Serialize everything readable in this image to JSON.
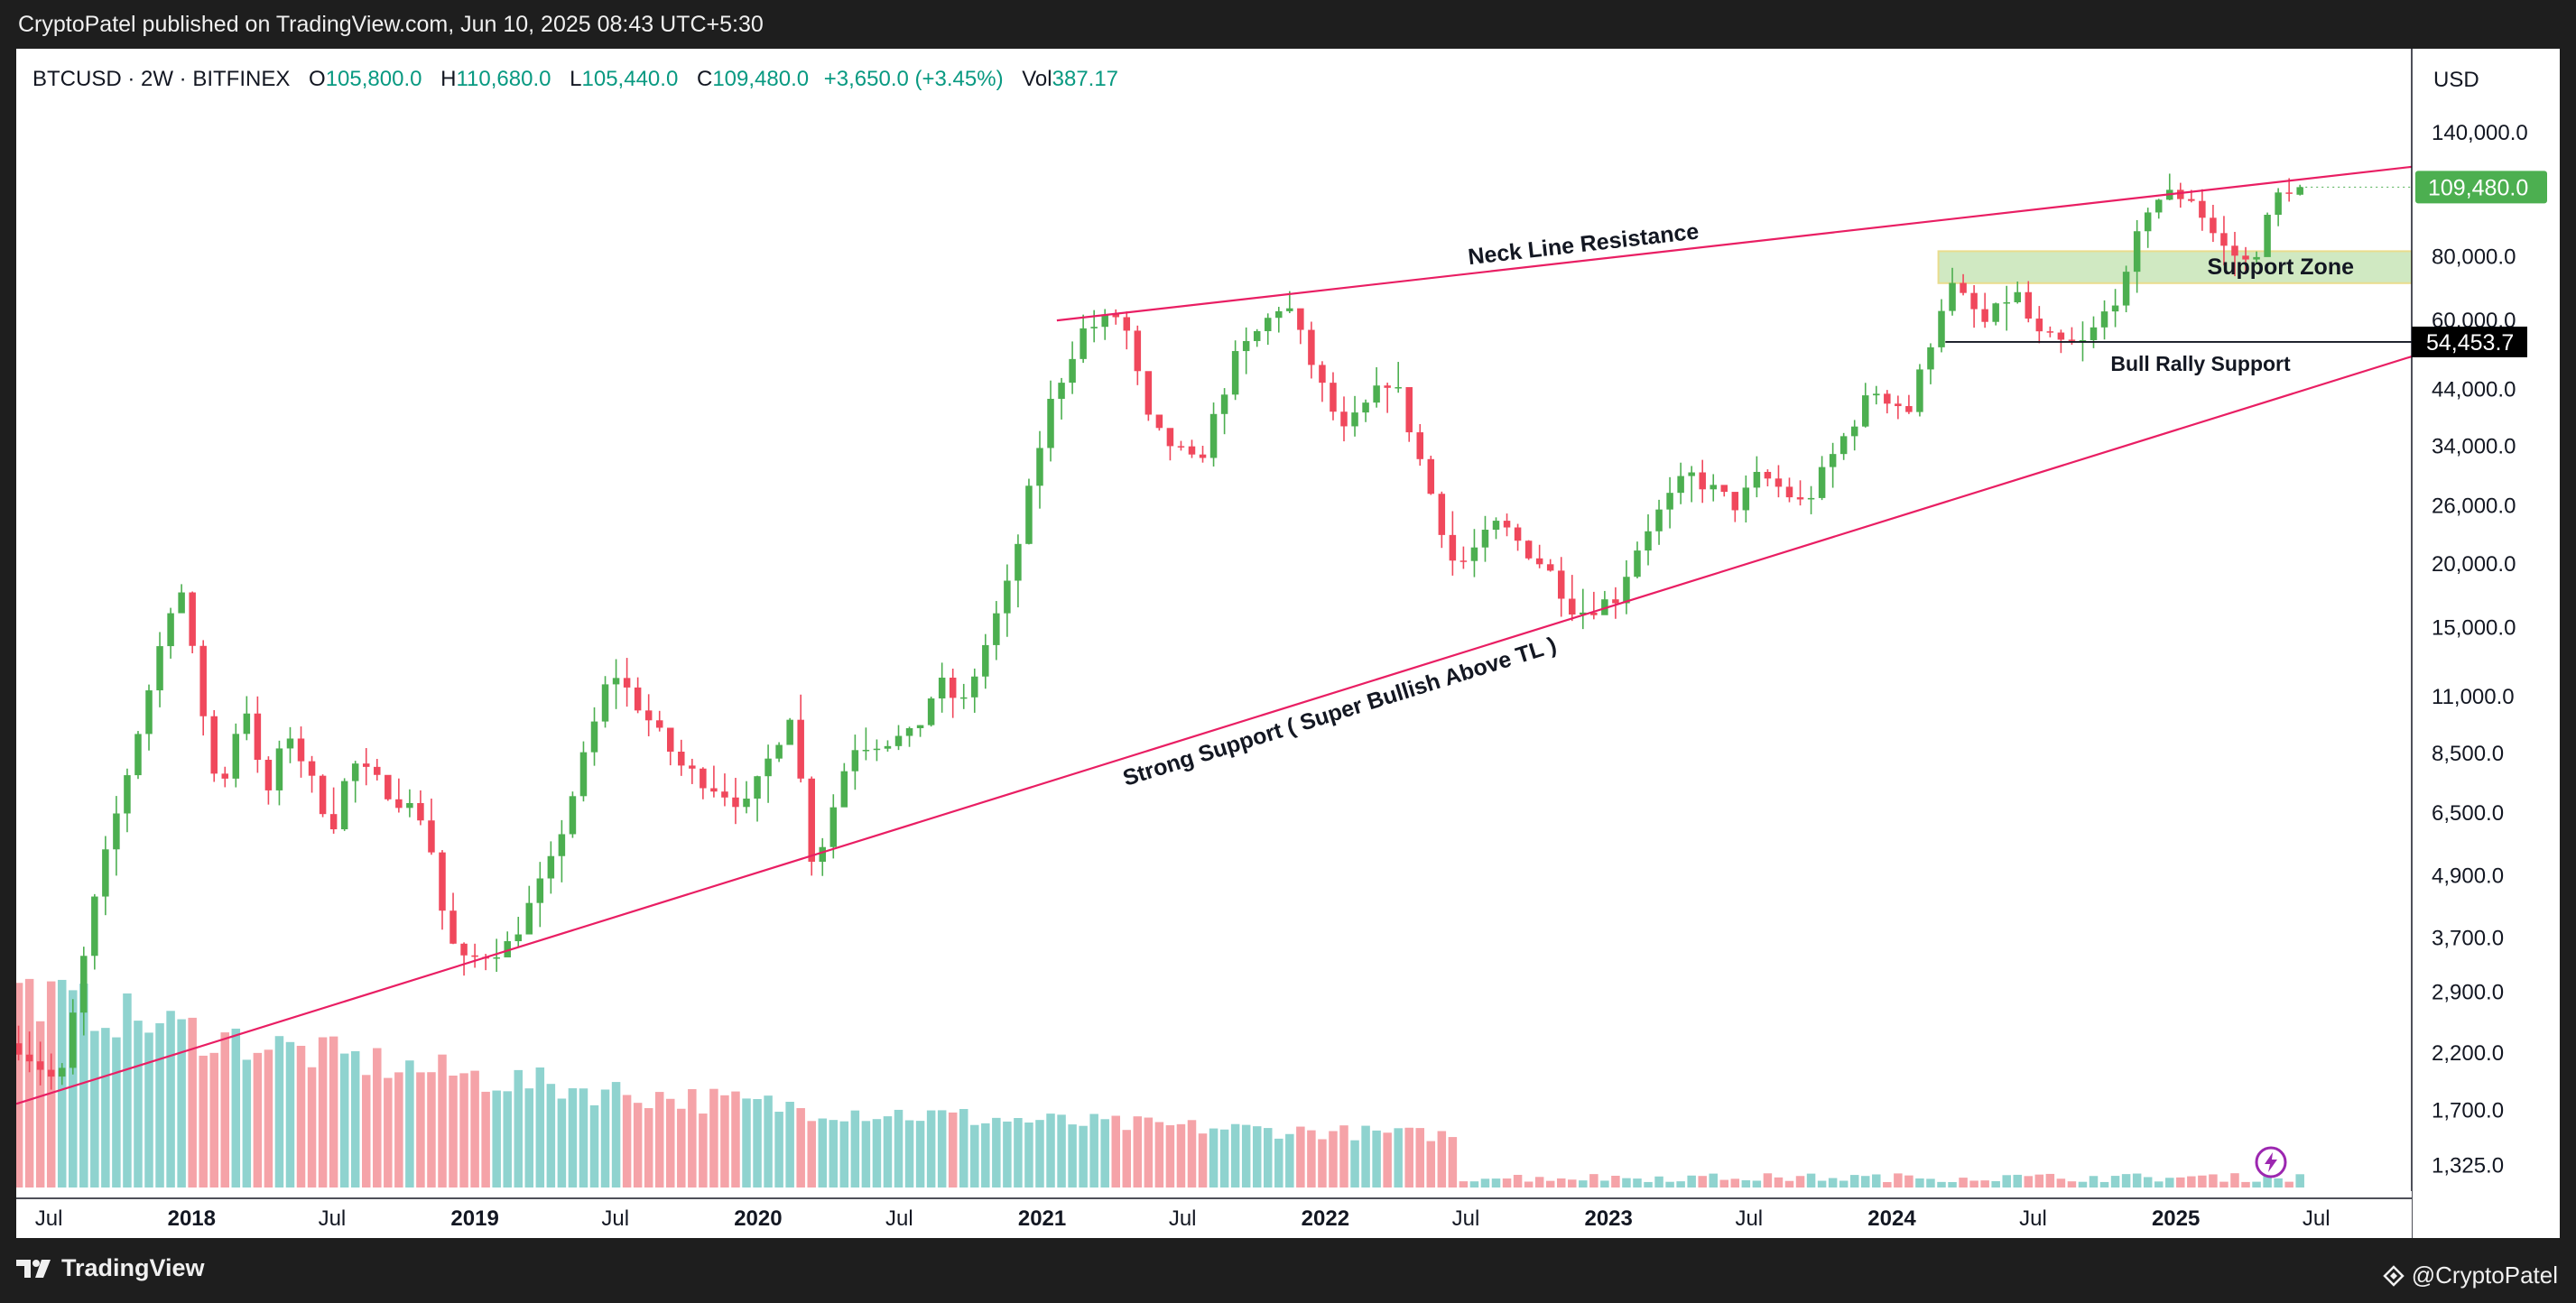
{
  "header": {
    "publish_line": "CryptoPatel published on TradingView.com, Jun 10, 2025 08:43 UTC+5:30"
  },
  "legend": {
    "symbol": "BTCUSD · 2W · BITFINEX",
    "open_label": "O",
    "open": "105,800.0",
    "high_label": "H",
    "high": "110,680.0",
    "low_label": "L",
    "low": "105,440.0",
    "close_label": "C",
    "close": "109,480.0",
    "change": "+3,650.0 (+3.45%)",
    "vol_label": "Vol",
    "vol": "387.17"
  },
  "footer": {
    "brand": "TradingView",
    "credit": "@CryptoPatel"
  },
  "colors": {
    "up": "#4caf50",
    "down": "#f0485c",
    "vol_up": "#8fd3cf",
    "vol_down": "#f5a3a8",
    "trendline": "#e91e63",
    "support_zone": "#c8e6b8",
    "price_tag": "#4caf50"
  },
  "chart_data": {
    "type": "candlestick",
    "symbol": "BTCUSD",
    "interval": "2W",
    "exchange": "BITFINEX",
    "scale": "log",
    "currency": "USD",
    "x_ticks": [
      "Jul",
      "2018",
      "Jul",
      "2019",
      "Jul",
      "2020",
      "Jul",
      "2021",
      "Jul",
      "2022",
      "Jul",
      "2023",
      "Jul",
      "2024",
      "Jul",
      "2025",
      "Jul"
    ],
    "x_tick_dates": [
      "2017-07-01",
      "2018-01-01",
      "2018-07-01",
      "2019-01-01",
      "2019-07-01",
      "2020-01-01",
      "2020-07-01",
      "2021-01-01",
      "2021-07-01",
      "2022-01-01",
      "2022-07-01",
      "2023-01-01",
      "2023-07-01",
      "2024-01-01",
      "2024-07-01",
      "2025-01-01",
      "2025-07-01"
    ],
    "x_range": [
      "2017-05-20",
      "2025-11-01"
    ],
    "y_ticks": [
      {
        "value": 140000,
        "label": "140,000.0"
      },
      {
        "value": 80000,
        "label": "80,000.0"
      },
      {
        "value": 60000,
        "label": "60,000.0"
      },
      {
        "value": 44000,
        "label": "44,000.0"
      },
      {
        "value": 34000,
        "label": "34,000.0"
      },
      {
        "value": 26000,
        "label": "26,000.0"
      },
      {
        "value": 20000,
        "label": "20,000.0"
      },
      {
        "value": 15000,
        "label": "15,000.0"
      },
      {
        "value": 11000,
        "label": "11,000.0"
      },
      {
        "value": 8500,
        "label": "8,500.0"
      },
      {
        "value": 6500,
        "label": "6,500.0"
      },
      {
        "value": 4900,
        "label": "4,900.0"
      },
      {
        "value": 3700,
        "label": "3,700.0"
      },
      {
        "value": 2900,
        "label": "2,900.0"
      },
      {
        "value": 2200,
        "label": "2,200.0"
      },
      {
        "value": 1700,
        "label": "1,700.0"
      },
      {
        "value": 1325,
        "label": "1,325.0"
      }
    ],
    "y_range": [
      1200,
      155000
    ],
    "price_axis_label": "USD",
    "anchors": [
      {
        "date": "2017-05-20",
        "price": 2300
      },
      {
        "date": "2017-07-15",
        "price": 1900
      },
      {
        "date": "2017-09-01",
        "price": 4600
      },
      {
        "date": "2017-12-15",
        "price": 19000
      },
      {
        "date": "2018-02-05",
        "price": 6900
      },
      {
        "date": "2018-03-10",
        "price": 11000
      },
      {
        "date": "2018-04-05",
        "price": 6800
      },
      {
        "date": "2018-05-05",
        "price": 9500
      },
      {
        "date": "2018-07-01",
        "price": 6100
      },
      {
        "date": "2018-07-25",
        "price": 8200
      },
      {
        "date": "2018-10-30",
        "price": 6300
      },
      {
        "date": "2018-11-25",
        "price": 3800
      },
      {
        "date": "2018-12-15",
        "price": 3300
      },
      {
        "date": "2019-02-15",
        "price": 3600
      },
      {
        "date": "2019-04-10",
        "price": 5200
      },
      {
        "date": "2019-06-26",
        "price": 12500
      },
      {
        "date": "2019-09-25",
        "price": 8000
      },
      {
        "date": "2019-12-18",
        "price": 6700
      },
      {
        "date": "2020-02-12",
        "price": 10300
      },
      {
        "date": "2020-03-13",
        "price": 5000
      },
      {
        "date": "2020-04-30",
        "price": 8800
      },
      {
        "date": "2020-07-20",
        "price": 9200
      },
      {
        "date": "2020-08-20",
        "price": 11800
      },
      {
        "date": "2020-09-20",
        "price": 10500
      },
      {
        "date": "2020-11-20",
        "price": 18500
      },
      {
        "date": "2021-01-08",
        "price": 40000
      },
      {
        "date": "2021-02-20",
        "price": 57000
      },
      {
        "date": "2021-04-14",
        "price": 62000
      },
      {
        "date": "2021-05-20",
        "price": 37000
      },
      {
        "date": "2021-07-20",
        "price": 31000
      },
      {
        "date": "2021-09-05",
        "price": 50000
      },
      {
        "date": "2021-11-10",
        "price": 66000
      },
      {
        "date": "2021-12-20",
        "price": 47000
      },
      {
        "date": "2022-01-24",
        "price": 36000
      },
      {
        "date": "2022-03-28",
        "price": 47000
      },
      {
        "date": "2022-05-12",
        "price": 29000
      },
      {
        "date": "2022-06-18",
        "price": 19500
      },
      {
        "date": "2022-08-12",
        "price": 24000
      },
      {
        "date": "2022-10-15",
        "price": 19500
      },
      {
        "date": "2022-11-21",
        "price": 16000
      },
      {
        "date": "2023-01-10",
        "price": 17200
      },
      {
        "date": "2023-02-15",
        "price": 23000
      },
      {
        "date": "2023-04-14",
        "price": 30000
      },
      {
        "date": "2023-06-15",
        "price": 26000
      },
      {
        "date": "2023-07-15",
        "price": 30000
      },
      {
        "date": "2023-09-10",
        "price": 26000
      },
      {
        "date": "2023-10-24",
        "price": 34000
      },
      {
        "date": "2023-12-08",
        "price": 44000
      },
      {
        "date": "2024-01-23",
        "price": 40000
      },
      {
        "date": "2024-03-14",
        "price": 71000
      },
      {
        "date": "2024-05-01",
        "price": 59000
      },
      {
        "date": "2024-06-07",
        "price": 69000
      },
      {
        "date": "2024-07-05",
        "price": 56000
      },
      {
        "date": "2024-08-05",
        "price": 54000
      },
      {
        "date": "2024-09-06",
        "price": 54000
      },
      {
        "date": "2024-10-29",
        "price": 72000
      },
      {
        "date": "2024-11-22",
        "price": 99000
      },
      {
        "date": "2024-12-17",
        "price": 106000
      },
      {
        "date": "2025-01-20",
        "price": 105000
      },
      {
        "date": "2025-02-28",
        "price": 84000
      },
      {
        "date": "2025-04-07",
        "price": 77000
      },
      {
        "date": "2025-05-10",
        "price": 104000
      },
      {
        "date": "2025-05-22",
        "price": 110000
      },
      {
        "date": "2025-06-10",
        "price": 109480
      }
    ],
    "last_price": {
      "value": 109480,
      "label": "109,480.0"
    },
    "last_candle": {
      "open": 105800,
      "high": 110680,
      "low": 105440,
      "close": 109480,
      "volume": 387.17
    },
    "annotations": {
      "neck_line": {
        "label": "Neck Line Resistance",
        "from": {
          "date": "2021-01-20",
          "price": 60000
        },
        "to": {
          "date": "2025-11-01",
          "price": 120000
        }
      },
      "strong_support": {
        "label": "Strong Support ( Super Bullish Above TL )",
        "from": {
          "date": "2017-05-20",
          "price": 1750
        },
        "to": {
          "date": "2025-11-01",
          "price": 51000
        }
      },
      "support_zone": {
        "label": "Support Zone",
        "from_date": "2024-03-01",
        "price_low": 71000,
        "price_high": 82000
      },
      "bull_rally_support": {
        "label": "Bull Rally Support",
        "from_date": "2024-03-10",
        "price": 54453.7,
        "price_label": "54,453.7"
      }
    }
  }
}
